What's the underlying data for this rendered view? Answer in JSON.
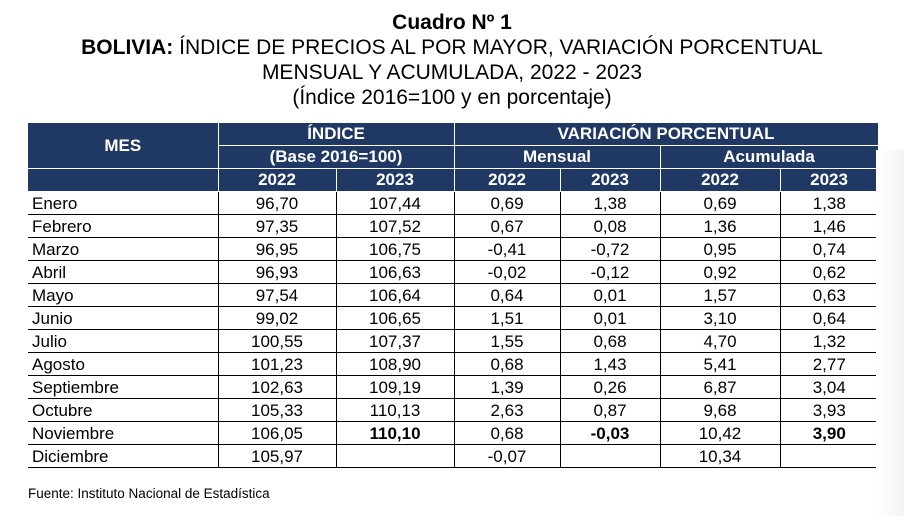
{
  "header": {
    "cuadro": "Cuadro Nº 1",
    "country": "BOLIVIA:",
    "title_line1": " ÍNDICE DE PRECIOS AL POR MAYOR, VARIACIÓN PORCENTUAL",
    "title_line2": "MENSUAL Y ACUMULADA, 2022 - 2023",
    "subtitle": "(Índice 2016=100 y en porcentaje)"
  },
  "table": {
    "col_mes": "MES",
    "group_indice": "ÍNDICE",
    "group_indice_sub": "(Base 2016=100)",
    "group_variacion": "VARIACIÓN PORCENTUAL",
    "sub_mensual": "Mensual",
    "sub_acumulada": "Acumulada",
    "years": [
      "2022",
      "2023",
      "2022",
      "2023",
      "2022",
      "2023"
    ],
    "rows": [
      {
        "mes": "Enero",
        "i22": "96,70",
        "i23": "107,44",
        "m22": "0,69",
        "m23": "1,38",
        "a22": "0,69",
        "a23": "1,38"
      },
      {
        "mes": "Febrero",
        "i22": "97,35",
        "i23": "107,52",
        "m22": "0,67",
        "m23": "0,08",
        "a22": "1,36",
        "a23": "1,46"
      },
      {
        "mes": "Marzo",
        "i22": "96,95",
        "i23": "106,75",
        "m22": "-0,41",
        "m23": "-0,72",
        "a22": "0,95",
        "a23": "0,74"
      },
      {
        "mes": "Abril",
        "i22": "96,93",
        "i23": "106,63",
        "m22": "-0,02",
        "m23": "-0,12",
        "a22": "0,92",
        "a23": "0,62"
      },
      {
        "mes": "Mayo",
        "i22": "97,54",
        "i23": "106,64",
        "m22": "0,64",
        "m23": "0,01",
        "a22": "1,57",
        "a23": "0,63"
      },
      {
        "mes": "Junio",
        "i22": "99,02",
        "i23": "106,65",
        "m22": "1,51",
        "m23": "0,01",
        "a22": "3,10",
        "a23": "0,64"
      },
      {
        "mes": "Julio",
        "i22": "100,55",
        "i23": "107,37",
        "m22": "1,55",
        "m23": "0,68",
        "a22": "4,70",
        "a23": "1,32"
      },
      {
        "mes": "Agosto",
        "i22": "101,23",
        "i23": "108,90",
        "m22": "0,68",
        "m23": "1,43",
        "a22": "5,41",
        "a23": "2,77"
      },
      {
        "mes": "Septiembre",
        "i22": "102,63",
        "i23": "109,19",
        "m22": "1,39",
        "m23": "0,26",
        "a22": "6,87",
        "a23": "3,04"
      },
      {
        "mes": "Octubre",
        "i22": "105,33",
        "i23": "110,13",
        "m22": "2,63",
        "m23": "0,87",
        "a22": "9,68",
        "a23": "3,93"
      },
      {
        "mes": "Noviembre",
        "i22": "106,05",
        "i23": "110,10",
        "m22": "0,68",
        "m23": "-0,03",
        "a22": "10,42",
        "a23": "3,90"
      },
      {
        "mes": "Diciembre",
        "i22": "105,97",
        "i23": "",
        "m22": "-0,07",
        "m23": "",
        "a22": "10,34",
        "a23": ""
      }
    ]
  },
  "source": "Fuente: Instituto Nacional de Estadística",
  "colors": {
    "header_bg": "#1f3864",
    "header_text": "#ffffff"
  }
}
